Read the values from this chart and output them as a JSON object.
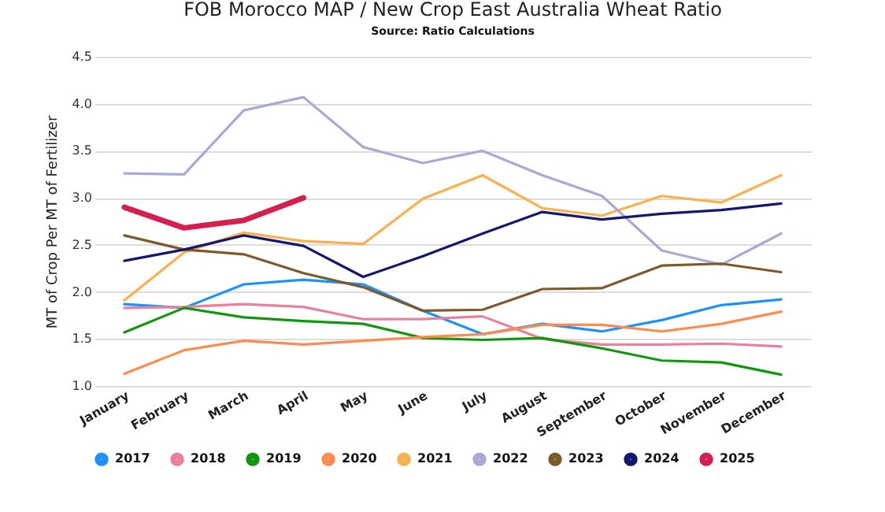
{
  "chart_data": {
    "type": "line",
    "title": "FOB Morocco MAP / New Crop East Australia Wheat Ratio",
    "subtitle": "Source: Ratio Calculations",
    "ylabel": "MT of Crop Per MT of Fertilizer",
    "categories": [
      "January",
      "February",
      "March",
      "April",
      "May",
      "June",
      "July",
      "August",
      "September",
      "October",
      "November",
      "December"
    ],
    "series": [
      {
        "name": "2017",
        "color": "#1e90ff",
        "values": [
          1.87,
          1.83,
          2.08,
          2.13,
          2.08,
          1.8,
          1.55,
          1.66,
          1.58,
          1.7,
          1.86,
          1.92
        ]
      },
      {
        "name": "2018",
        "color": "#e8829a",
        "values": [
          1.83,
          1.84,
          1.87,
          1.84,
          1.71,
          1.71,
          1.74,
          1.5,
          1.44,
          1.44,
          1.45,
          1.42
        ]
      },
      {
        "name": "2019",
        "color": "#13960f",
        "values": [
          1.57,
          1.83,
          1.73,
          1.69,
          1.66,
          1.51,
          1.49,
          1.51,
          1.4,
          1.27,
          1.25,
          1.12
        ]
      },
      {
        "name": "2020",
        "color": "#ff8c4e",
        "values": [
          1.13,
          1.38,
          1.48,
          1.44,
          1.48,
          1.52,
          1.55,
          1.65,
          1.65,
          1.58,
          1.66,
          1.79
        ]
      },
      {
        "name": "2021",
        "color": "#fbb04e",
        "values": [
          1.91,
          2.42,
          2.63,
          2.54,
          2.51,
          2.99,
          3.24,
          2.89,
          2.81,
          3.02,
          2.95,
          3.24
        ]
      },
      {
        "name": "2022",
        "color": "#a9a9d4",
        "values": [
          3.26,
          3.25,
          3.93,
          4.07,
          3.54,
          3.37,
          3.5,
          3.24,
          3.02,
          2.44,
          2.29,
          2.62
        ]
      },
      {
        "name": "2023",
        "color": "#7b5a2c",
        "values": [
          2.6,
          2.45,
          2.4,
          2.2,
          2.05,
          1.8,
          1.81,
          2.03,
          2.04,
          2.28,
          2.3,
          2.21
        ]
      },
      {
        "name": "2024",
        "color": "#14176e",
        "values": [
          2.33,
          2.45,
          2.6,
          2.49,
          2.16,
          2.38,
          2.62,
          2.85,
          2.77,
          2.83,
          2.87,
          2.94
        ]
      },
      {
        "name": "2025",
        "color": "#d4204f",
        "values": [
          2.9,
          2.68,
          2.76,
          3.0,
          null,
          null,
          null,
          null,
          null,
          null,
          null,
          null
        ]
      }
    ],
    "ylim": [
      1.0,
      4.5
    ],
    "yticks": [
      {
        "value": 1.0,
        "label": "1.0"
      },
      {
        "value": 1.5,
        "label": "1.5"
      },
      {
        "value": 2.0,
        "label": "2.0"
      },
      {
        "value": 2.5,
        "label": "2.5"
      },
      {
        "value": 3.0,
        "label": "3.0"
      },
      {
        "value": 3.5,
        "label": "3.5"
      },
      {
        "value": 4.0,
        "label": "4.0"
      },
      {
        "value": 4.5,
        "label": "4.5"
      }
    ],
    "grid": "y",
    "legend": "bottom",
    "marker": "none",
    "line_style": "solid"
  }
}
